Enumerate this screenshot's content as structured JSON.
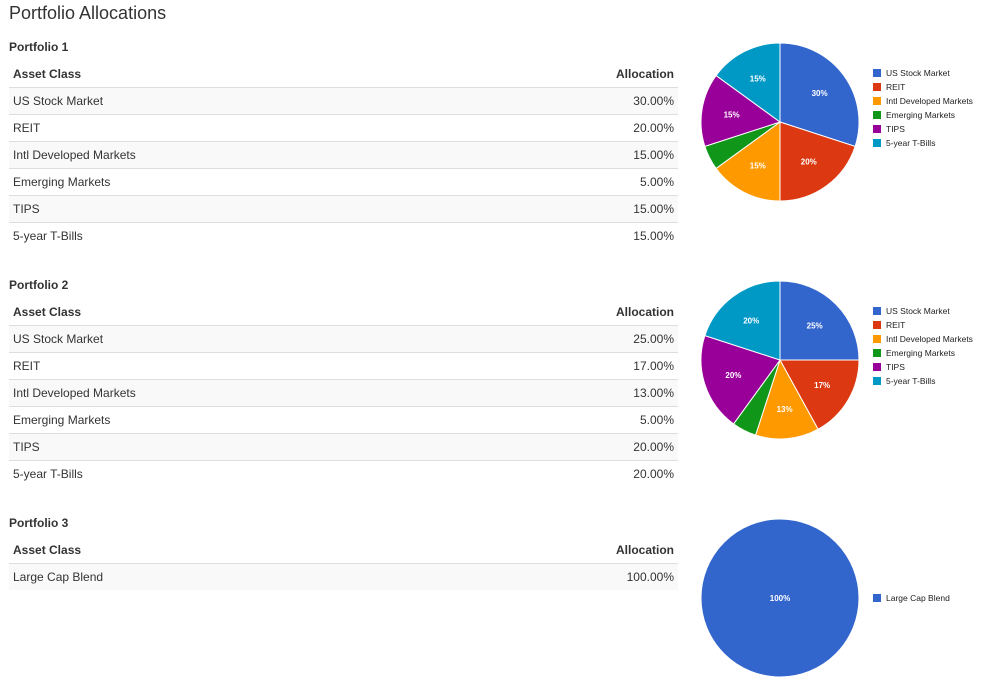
{
  "page": {
    "title": "Portfolio Allocations"
  },
  "colors": [
    "#3366cc",
    "#dc3912",
    "#ff9900",
    "#109618",
    "#990099",
    "#0099c6"
  ],
  "portfolios": [
    {
      "title": "Portfolio 1",
      "header": {
        "asset_class": "Asset Class",
        "allocation": "Allocation"
      },
      "rows": [
        {
          "asset": "US Stock Market",
          "allocation": "30.00%"
        },
        {
          "asset": "REIT",
          "allocation": "20.00%"
        },
        {
          "asset": "Intl Developed Markets",
          "allocation": "15.00%"
        },
        {
          "asset": "Emerging Markets",
          "allocation": "5.00%"
        },
        {
          "asset": "TIPS",
          "allocation": "15.00%"
        },
        {
          "asset": "5-year T-Bills",
          "allocation": "15.00%"
        }
      ],
      "legend": [
        "US Stock Market",
        "REIT",
        "Intl Developed Markets",
        "Emerging Markets",
        "TIPS",
        "5-year T-Bills"
      ],
      "chart_data": {
        "type": "pie",
        "categories": [
          "US Stock Market",
          "REIT",
          "Intl Developed Markets",
          "Emerging Markets",
          "TIPS",
          "5-year T-Bills"
        ],
        "values": [
          30,
          20,
          15,
          5,
          15,
          15
        ],
        "labels": [
          "30%",
          "20%",
          "15%",
          "",
          "15%",
          "15%"
        ],
        "legend_position": "right"
      }
    },
    {
      "title": "Portfolio 2",
      "header": {
        "asset_class": "Asset Class",
        "allocation": "Allocation"
      },
      "rows": [
        {
          "asset": "US Stock Market",
          "allocation": "25.00%"
        },
        {
          "asset": "REIT",
          "allocation": "17.00%"
        },
        {
          "asset": "Intl Developed Markets",
          "allocation": "13.00%"
        },
        {
          "asset": "Emerging Markets",
          "allocation": "5.00%"
        },
        {
          "asset": "TIPS",
          "allocation": "20.00%"
        },
        {
          "asset": "5-year T-Bills",
          "allocation": "20.00%"
        }
      ],
      "legend": [
        "US Stock Market",
        "REIT",
        "Intl Developed Markets",
        "Emerging Markets",
        "TIPS",
        "5-year T-Bills"
      ],
      "chart_data": {
        "type": "pie",
        "categories": [
          "US Stock Market",
          "REIT",
          "Intl Developed Markets",
          "Emerging Markets",
          "TIPS",
          "5-year T-Bills"
        ],
        "values": [
          25,
          17,
          13,
          5,
          20,
          20
        ],
        "labels": [
          "25%",
          "17%",
          "13%",
          "",
          "20%",
          "20%"
        ],
        "legend_position": "right"
      }
    },
    {
      "title": "Portfolio 3",
      "header": {
        "asset_class": "Asset Class",
        "allocation": "Allocation"
      },
      "rows": [
        {
          "asset": "Large Cap Blend",
          "allocation": "100.00%"
        }
      ],
      "legend": [
        "Large Cap Blend"
      ],
      "chart_data": {
        "type": "pie",
        "categories": [
          "Large Cap Blend"
        ],
        "values": [
          100
        ],
        "labels": [
          "100%"
        ],
        "legend_position": "right"
      }
    }
  ]
}
